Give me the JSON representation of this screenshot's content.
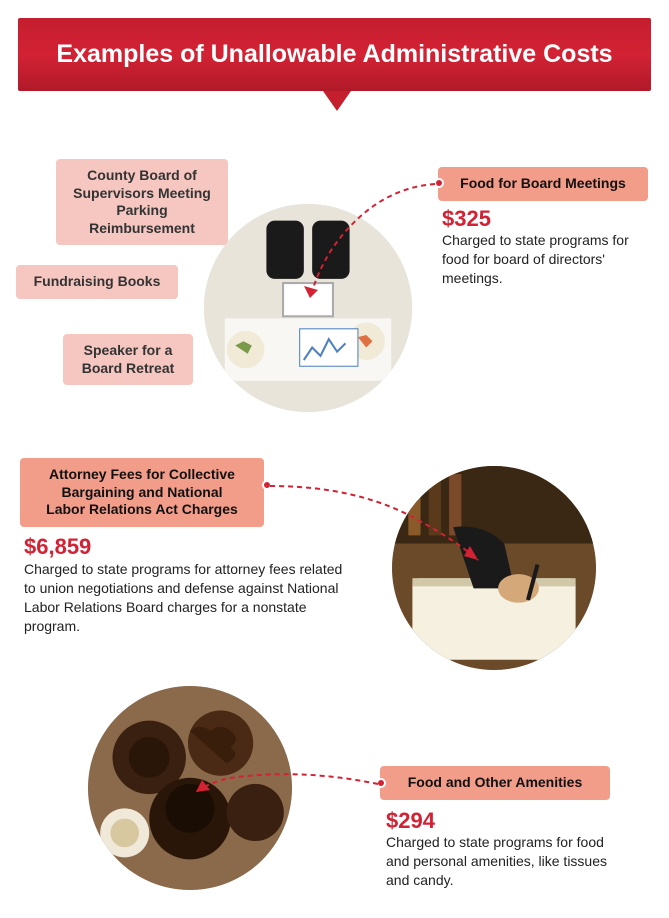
{
  "header": {
    "title": "Examples of Unallowable Administrative Costs"
  },
  "boxes": {
    "parking": "County Board of\nSupervisors Meeting\nParking Reimbursement",
    "fundraising": "Fundraising Books",
    "speaker": "Speaker for a\nBoard Retreat",
    "food_board": "Food for Board Meetings",
    "attorney": "Attorney Fees for Collective\nBargaining and National\nLabor Relations Act Charges",
    "amenities": "Food and Other Amenities"
  },
  "items": {
    "food_board": {
      "amount": "$325",
      "desc": "Charged to state programs for food for board of directors' meetings."
    },
    "attorney": {
      "amount": "$6,859",
      "desc": "Charged to state programs for attorney fees related to union negotiations and defense against National Labor Relations Board charges for a nonstate program."
    },
    "amenities": {
      "amount": "$294",
      "desc": "Charged to state programs for food and personal amenities, like tissues and candy."
    }
  },
  "colors": {
    "red": "#d32234",
    "box_light": "#f5c7c0",
    "box_highlight": "#f29c8a"
  }
}
